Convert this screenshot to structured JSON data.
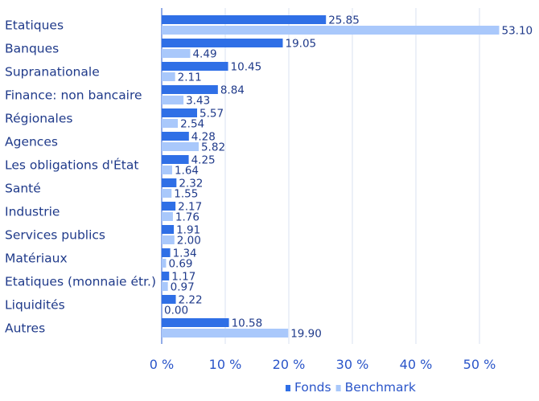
{
  "chart_data": {
    "type": "bar",
    "orientation": "horizontal",
    "categories": [
      "Etatiques",
      "Banques",
      "Supranationale",
      "Finance: non bancaire",
      "Régionales",
      "Agences",
      "Les obligations d'État",
      "Santé",
      "Industrie",
      "Services publics",
      "Matériaux",
      "Etatiques (monnaie étr.)",
      "Liquidités",
      "Autres"
    ],
    "series": [
      {
        "name": "Fonds",
        "color": "#2f6fe6",
        "values": [
          25.85,
          19.05,
          10.45,
          8.84,
          5.57,
          4.28,
          4.25,
          2.32,
          2.17,
          1.91,
          1.34,
          1.17,
          2.22,
          10.58
        ],
        "labels": [
          "25.85",
          "19.05",
          "10.45",
          "8.84",
          "5.57",
          "4.28",
          "4.25",
          "2.32",
          "2.17",
          "1.91",
          "1.34",
          "1.17",
          "2.22",
          "10.58"
        ]
      },
      {
        "name": "Benchmark",
        "color": "#a9c8fb",
        "values": [
          53.1,
          4.49,
          2.11,
          3.43,
          2.54,
          5.82,
          1.64,
          1.55,
          1.76,
          2.0,
          0.69,
          0.97,
          0.0,
          19.9
        ],
        "labels": [
          "53.10",
          "4.49",
          "2.11",
          "3.43",
          "2.54",
          "5.82",
          "1.64",
          "1.55",
          "1.76",
          "2.00",
          "0.69",
          "0.97",
          "0.00",
          "19.90"
        ]
      }
    ],
    "xlim": [
      0,
      60
    ],
    "xticks": [
      0,
      10,
      20,
      30,
      40,
      50
    ],
    "xtick_labels": [
      "0 %",
      "10 %",
      "20 %",
      "30 %",
      "40 %",
      "50 %"
    ],
    "grid": true,
    "legend_position": "bottom-center"
  }
}
